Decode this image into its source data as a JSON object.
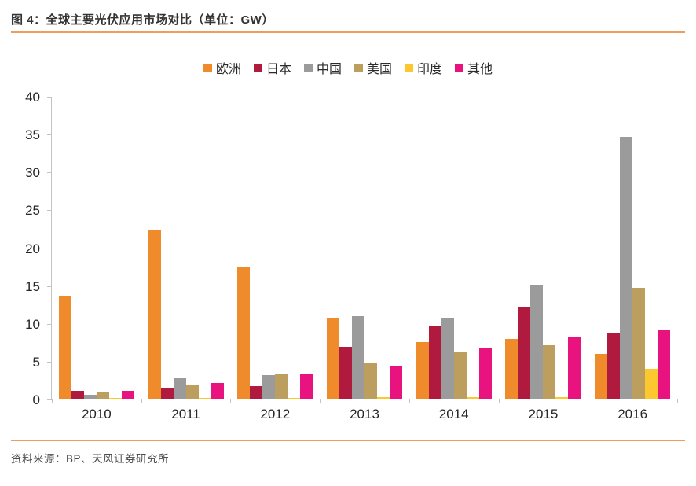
{
  "header": {
    "title": "图 4：全球主要光伏应用市场对比（单位：GW）"
  },
  "footer": {
    "source": "资料来源：BP、天风证券研究所"
  },
  "style": {
    "accent_line_color": "#ED9E5C",
    "axis_color": "#c3c3c3",
    "text_color": "#262626"
  },
  "chart_data": {
    "type": "bar",
    "title": "全球主要光伏应用市场对比",
    "unit": "GW",
    "categories": [
      "2010",
      "2011",
      "2012",
      "2013",
      "2014",
      "2015",
      "2016"
    ],
    "series": [
      {
        "name": "欧洲",
        "color": "#F08B2C",
        "values": [
          13.5,
          22.2,
          17.4,
          10.7,
          7.5,
          7.9,
          5.9
        ]
      },
      {
        "name": "日本",
        "color": "#B01A3E",
        "values": [
          1.0,
          1.3,
          1.7,
          6.9,
          9.7,
          12.0,
          8.6
        ]
      },
      {
        "name": "中国",
        "color": "#9B9B9B",
        "values": [
          0.5,
          2.7,
          3.1,
          10.9,
          10.6,
          15.1,
          34.6
        ]
      },
      {
        "name": "美国",
        "color": "#BC9E5E",
        "values": [
          0.9,
          1.9,
          3.3,
          4.7,
          6.2,
          7.1,
          14.6
        ]
      },
      {
        "name": "印度",
        "color": "#FDC72F",
        "values": [
          0.1,
          0.1,
          0.1,
          0.2,
          0.2,
          0.2,
          3.9
        ]
      },
      {
        "name": "其他",
        "color": "#E8137F",
        "values": [
          1.0,
          2.1,
          3.2,
          4.4,
          6.6,
          8.1,
          9.1
        ]
      }
    ],
    "ylim": [
      0,
      40
    ],
    "yticks": [
      0,
      5,
      10,
      15,
      20,
      25,
      30,
      35,
      40
    ],
    "legend_position": "top-center",
    "grid": false
  }
}
